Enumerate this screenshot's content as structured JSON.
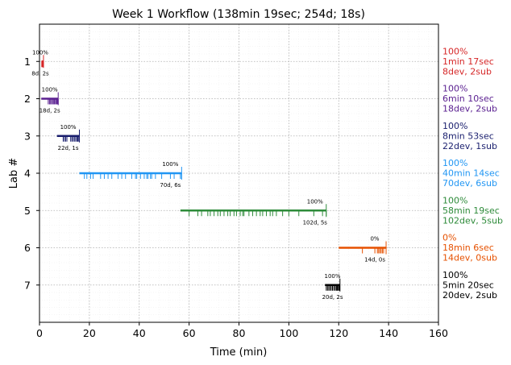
{
  "chart_data": {
    "type": "timeline",
    "title": "Week 1 Workflow (138min 19sec; 254d; 18s)",
    "xlabel": "Time (min)",
    "ylabel": "Lab #",
    "xlim": [
      0,
      160
    ],
    "ylim": [
      0,
      8
    ],
    "xticks": [
      0,
      20,
      40,
      60,
      80,
      100,
      120,
      140,
      160
    ],
    "grid": true,
    "labs": [
      {
        "lab": 1,
        "color": "#d62728",
        "start": 0.8,
        "end": 1.6,
        "percent_label": "100%",
        "count_label": "8d, 2s",
        "right_label": [
          "100%",
          "1min 17sec",
          "8dev, 2sub"
        ],
        "events": [
          0.9,
          1.0,
          1.1,
          1.2,
          1.3,
          1.4,
          1.5,
          1.6
        ]
      },
      {
        "lab": 2,
        "color": "#5b2191",
        "start": 0.7,
        "end": 7.5,
        "percent_label": "100%",
        "count_label": "18d, 2s",
        "right_label": [
          "100%",
          "6min 10sec",
          "18dev, 2sub"
        ],
        "events": [
          3.5,
          4.0,
          4.3,
          4.8,
          5.2,
          5.6,
          6.0,
          6.4,
          6.8,
          7.0,
          7.2,
          7.5
        ]
      },
      {
        "lab": 3,
        "color": "#1a1f6e",
        "start": 7.0,
        "end": 16.0,
        "percent_label": "100%",
        "count_label": "22d, 1s",
        "right_label": [
          "100%",
          "8min 53sec",
          "22dev, 1sub"
        ],
        "events": [
          9.5,
          10.0,
          10.5,
          11.0,
          12.5,
          13.0,
          13.5,
          14.0,
          14.5,
          15.0,
          15.3,
          15.6,
          16.0
        ]
      },
      {
        "lab": 4,
        "color": "#2196f3",
        "start": 16.0,
        "end": 57.0,
        "percent_label": "100%",
        "count_label": "70d, 6s",
        "right_label": [
          "100%",
          "40min 14sec",
          "70dev, 6sub"
        ],
        "events": [
          18.0,
          19.0,
          20.5,
          21.5,
          24.5,
          26.0,
          27.5,
          29.0,
          31.5,
          33.0,
          34.5,
          37.0,
          38.5,
          39.0,
          40.5,
          42.0,
          43.0,
          43.5,
          44.5,
          45.0,
          46.5,
          49.0,
          52.5,
          54.0,
          56.5,
          57.0
        ]
      },
      {
        "lab": 5,
        "color": "#2e8b3a",
        "start": 56.5,
        "end": 115.0,
        "percent_label": "100%",
        "count_label": "102d, 5s",
        "right_label": [
          "100%",
          "58min 19sec",
          "102dev, 5sub"
        ],
        "events": [
          60.0,
          63.5,
          65.0,
          67.5,
          68.5,
          70.0,
          71.5,
          72.5,
          74.0,
          75.5,
          76.5,
          78.0,
          79.0,
          80.5,
          81.5,
          82.0,
          84.0,
          85.5,
          87.0,
          88.5,
          89.5,
          91.0,
          92.5,
          93.5,
          95.0,
          97.5,
          100.0,
          104.0,
          110.0,
          113.5,
          115.0
        ]
      },
      {
        "lab": 6,
        "color": "#e65100",
        "start": 120.0,
        "end": 139.0,
        "percent_label": "0%",
        "count_label": "14d, 0s",
        "right_label": [
          "0%",
          "18min 6sec",
          "14dev, 0sub"
        ],
        "events": [
          129.5,
          134.5,
          135.5,
          136.0,
          136.5,
          137.0,
          137.5,
          138.0
        ]
      },
      {
        "lab": 7,
        "color": "#000000",
        "start": 114.5,
        "end": 120.5,
        "percent_label": "100%",
        "count_label": "20d, 2s",
        "right_label": [
          "100%",
          "5min 20sec",
          "20dev, 2sub"
        ],
        "events": [
          115.0,
          115.5,
          116.0,
          116.5,
          117.0,
          117.5,
          118.0,
          118.5,
          119.0,
          119.3,
          119.6,
          120.0,
          120.3
        ]
      }
    ]
  }
}
